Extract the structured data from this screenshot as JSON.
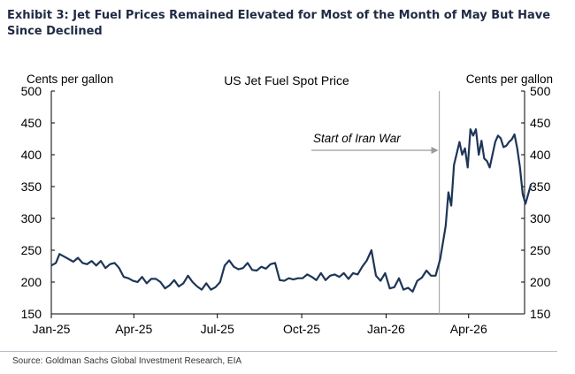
{
  "exhibit_title": "Exhibit 3: Jet Fuel Prices Remained Elevated for Most of the Month of May But Have Since Declined",
  "source": "Source: Goldman Sachs Global Investment Research, EIA",
  "colors": {
    "line": "#1e3558",
    "marker": "#a9a9a9",
    "arrow": "#9a9a9a",
    "title": "#1f2a44"
  },
  "chart_data": {
    "type": "line",
    "title": "US Jet Fuel Spot Price",
    "ylabel_left": "Cents per gallon",
    "ylabel_right": "Cents per gallon",
    "ylim": [
      150,
      500
    ],
    "yticks": [
      150,
      200,
      250,
      300,
      350,
      400,
      450,
      500
    ],
    "ytick_labels": [
      "150",
      "200",
      "250",
      "300",
      "350",
      "400",
      "450",
      "500"
    ],
    "xlim": [
      "2025-01-01",
      "2026-06-01"
    ],
    "xticks": [
      "2025-01-01",
      "2025-04-01",
      "2025-07-01",
      "2025-10-01",
      "2026-01-01",
      "2026-04-01"
    ],
    "xtick_labels": [
      "Jan-25",
      "Apr-25",
      "Jul-25",
      "Oct-25",
      "Jan-26",
      "Apr-26"
    ],
    "grid": false,
    "legend": "none",
    "annotation": {
      "text": "Start of Iran War",
      "date": "2026-02-28"
    },
    "series": [
      {
        "x": [
          "2025-01-01",
          "2025-01-06",
          "2025-01-10",
          "2025-01-15",
          "2025-01-20",
          "2025-01-25",
          "2025-01-30",
          "2025-02-04",
          "2025-02-09",
          "2025-02-14",
          "2025-02-19",
          "2025-02-24",
          "2025-03-01",
          "2025-03-06",
          "2025-03-11",
          "2025-03-16",
          "2025-03-21",
          "2025-03-26",
          "2025-03-31",
          "2025-04-05",
          "2025-04-10",
          "2025-04-15",
          "2025-04-20",
          "2025-04-25",
          "2025-04-30",
          "2025-05-05",
          "2025-05-10",
          "2025-05-15",
          "2025-05-20",
          "2025-05-25",
          "2025-05-30",
          "2025-06-04",
          "2025-06-09",
          "2025-06-14",
          "2025-06-19",
          "2025-06-24",
          "2025-06-29",
          "2025-07-04",
          "2025-07-09",
          "2025-07-14",
          "2025-07-19",
          "2025-07-24",
          "2025-07-29",
          "2025-08-03",
          "2025-08-08",
          "2025-08-13",
          "2025-08-18",
          "2025-08-23",
          "2025-08-28",
          "2025-09-02",
          "2025-09-07",
          "2025-09-12",
          "2025-09-17",
          "2025-09-22",
          "2025-09-27",
          "2025-10-02",
          "2025-10-07",
          "2025-10-12",
          "2025-10-17",
          "2025-10-22",
          "2025-10-27",
          "2025-11-01",
          "2025-11-06",
          "2025-11-11",
          "2025-11-16",
          "2025-11-21",
          "2025-11-26",
          "2025-12-01",
          "2025-12-06",
          "2025-12-11",
          "2025-12-16",
          "2025-12-21",
          "2025-12-26",
          "2025-12-31",
          "2026-01-05",
          "2026-01-10",
          "2026-01-15",
          "2026-01-20",
          "2026-01-25",
          "2026-01-30",
          "2026-02-04",
          "2026-02-09",
          "2026-02-14",
          "2026-02-19",
          "2026-02-24",
          "2026-03-01",
          "2026-03-04",
          "2026-03-07",
          "2026-03-10",
          "2026-03-13",
          "2026-03-16",
          "2026-03-19",
          "2026-03-22",
          "2026-03-25",
          "2026-03-28",
          "2026-03-31",
          "2026-04-03",
          "2026-04-06",
          "2026-04-09",
          "2026-04-12",
          "2026-04-15",
          "2026-04-18",
          "2026-04-21",
          "2026-04-24",
          "2026-04-27",
          "2026-04-30",
          "2026-05-03",
          "2026-05-06",
          "2026-05-09",
          "2026-05-12",
          "2026-05-15",
          "2026-05-18",
          "2026-05-21",
          "2026-05-24",
          "2026-05-27",
          "2026-05-30",
          "2026-06-02",
          "2026-06-05",
          "2026-06-08"
        ],
        "values": [
          226,
          230,
          244,
          240,
          236,
          232,
          238,
          230,
          228,
          233,
          226,
          233,
          222,
          228,
          230,
          222,
          208,
          206,
          202,
          200,
          208,
          198,
          205,
          205,
          200,
          190,
          195,
          203,
          193,
          198,
          210,
          200,
          193,
          188,
          198,
          188,
          192,
          200,
          226,
          234,
          224,
          220,
          222,
          230,
          219,
          218,
          224,
          221,
          228,
          230,
          203,
          202,
          206,
          204,
          206,
          206,
          212,
          208,
          203,
          214,
          203,
          210,
          212,
          208,
          214,
          205,
          214,
          212,
          224,
          234,
          250,
          210,
          202,
          214,
          190,
          192,
          206,
          188,
          191,
          185,
          202,
          207,
          218,
          210,
          210,
          236,
          262,
          288,
          341,
          320,
          384,
          402,
          420,
          400,
          410,
          380,
          440,
          430,
          440,
          400,
          422,
          394,
          390,
          380,
          400,
          420,
          430,
          426,
          412,
          414,
          420,
          424,
          432,
          410,
          380,
          338,
          323,
          338,
          354
        ]
      }
    ]
  }
}
